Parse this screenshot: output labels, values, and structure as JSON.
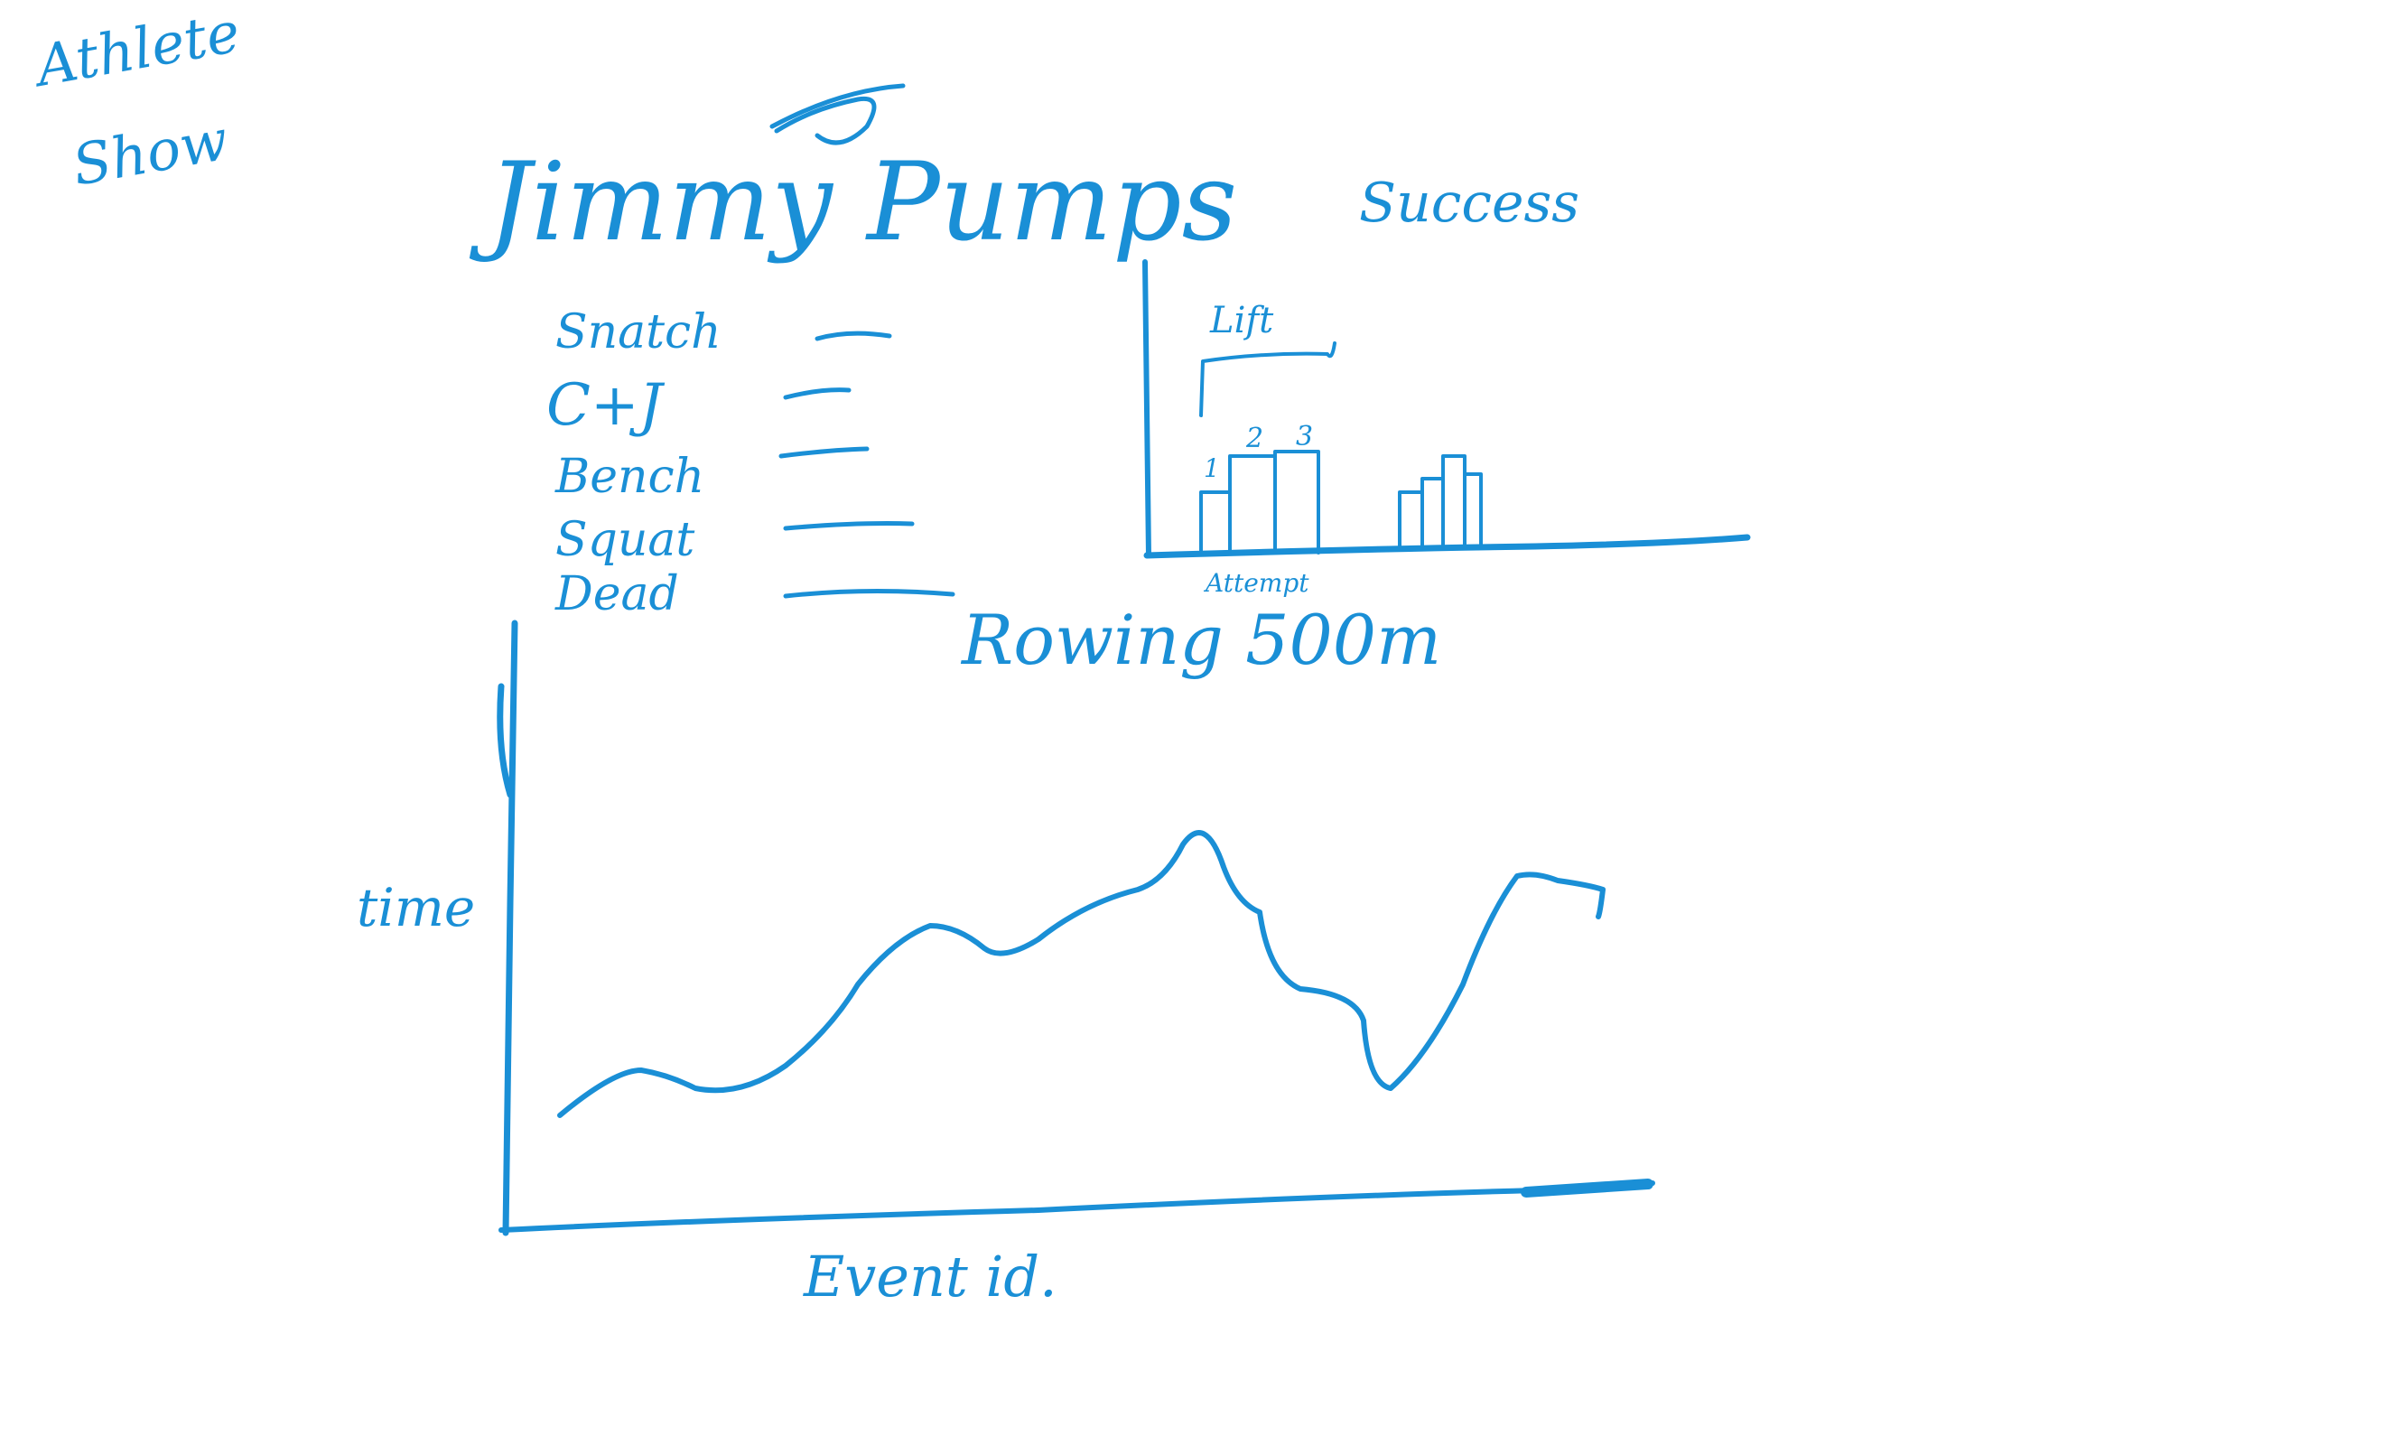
{
  "page": {
    "title_line1": "Athlete",
    "title_line2": "Show"
  },
  "athlete": {
    "name": "Jimmy Pumps"
  },
  "lifts": {
    "items": [
      {
        "label": "Snatch"
      },
      {
        "label": "C+J"
      },
      {
        "label": "Bench"
      },
      {
        "label": "Squat"
      },
      {
        "label": "Dead"
      }
    ]
  },
  "success_chart": {
    "title": "Success",
    "group_label": "Lift",
    "x_label": "Attempt",
    "attempt_labels": [
      "1",
      "2",
      "3"
    ]
  },
  "rowing": {
    "label": "Rowing 500m"
  },
  "time_chart": {
    "y_label": "time",
    "x_label": "Event id."
  },
  "colors": {
    "ink": "#1a8fd6",
    "background": "#ffffff"
  }
}
